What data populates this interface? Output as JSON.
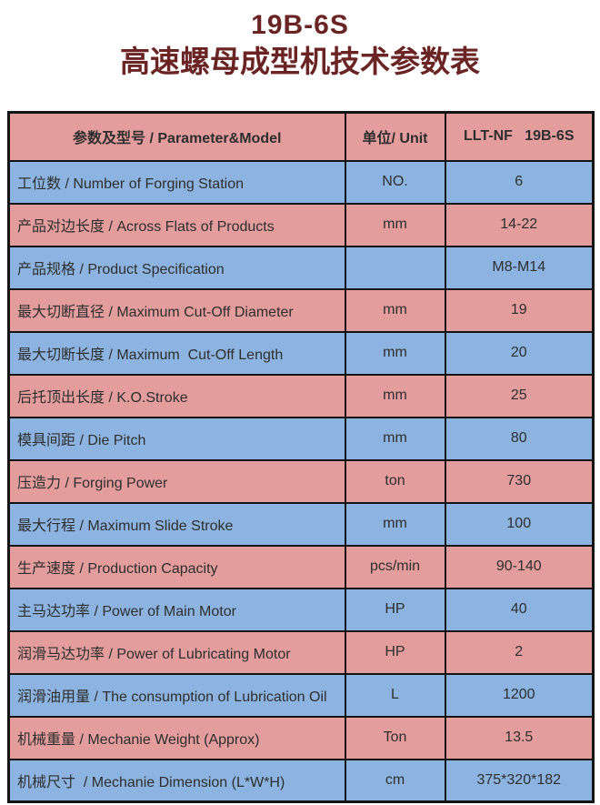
{
  "page": {
    "title_line1": "19B-6S",
    "title_line2": "高速螺母成型机技术参数表"
  },
  "colors": {
    "title_text": "#6B2424",
    "header_bg": "#E49D9D",
    "row_pink": "#E49D9D",
    "row_blue": "#8DB4E0",
    "border": "#141414",
    "cell_text": "#2e2e2e"
  },
  "table": {
    "headers": {
      "parameter": "参数及型号 / Parameter&Model",
      "unit": "单位/ Unit",
      "model": "LLT-NF   19B-6S"
    },
    "rows": [
      {
        "param": "工位数 / Number of Forging Station",
        "unit": "NO.",
        "value": "6"
      },
      {
        "param": "产品对边长度 / Across Flats of Products",
        "unit": "mm",
        "value": "14-22"
      },
      {
        "param": "产品规格 / Product Specification",
        "unit": "",
        "value": "M8-M14"
      },
      {
        "param": "最大切断直径 / Maximum Cut-Off Diameter",
        "unit": "mm",
        "value": "19"
      },
      {
        "param": "最大切断长度 / Maximum  Cut-Off Length",
        "unit": "mm",
        "value": "20"
      },
      {
        "param": "后托顶出长度 / K.O.Stroke",
        "unit": "mm",
        "value": "25"
      },
      {
        "param": "模具间距 / Die Pitch",
        "unit": "mm",
        "value": "80"
      },
      {
        "param": "压造力 / Forging Power",
        "unit": "ton",
        "value": "730"
      },
      {
        "param": "最大行程 / Maximum Slide Stroke",
        "unit": "mm",
        "value": "100"
      },
      {
        "param": "生产速度 / Production Capacity",
        "unit": "pcs/min",
        "value": "90-140"
      },
      {
        "param": "主马达功率 / Power of Main Motor",
        "unit": "HP",
        "value": "40"
      },
      {
        "param": "润滑马达功率 / Power of Lubricating Motor",
        "unit": "HP",
        "value": "2"
      },
      {
        "param": "润滑油用量 / The consumption of Lubrication Oil",
        "unit": "L",
        "value": "1200"
      },
      {
        "param": "机械重量 / Mechanie Weight (Approx)",
        "unit": "Ton",
        "value": "13.5"
      },
      {
        "param": "机械尺寸  / Mechanie Dimension (L*W*H)",
        "unit": "cm",
        "value": "375*320*182"
      }
    ]
  }
}
